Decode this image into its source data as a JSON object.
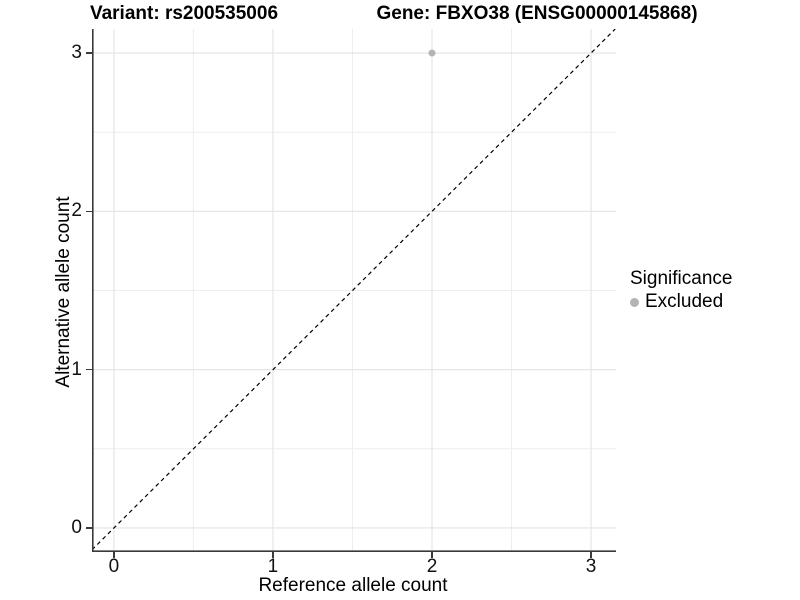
{
  "chart_data": {
    "type": "scatter",
    "title_left": "Variant: rs200535006",
    "title_right": "Gene: FBXO38 (ENSG00000145868)",
    "xlabel": "Reference allele count",
    "ylabel": "Alternative allele count",
    "xlim": [
      -0.138,
      3.157
    ],
    "ylim": [
      -0.152,
      3.152
    ],
    "x_ticks": [
      0,
      1,
      2,
      3
    ],
    "y_ticks": [
      0,
      1,
      2,
      3
    ],
    "x_minor": [
      0.5,
      1.5,
      2.5
    ],
    "y_minor": [
      0.5,
      1.5,
      2.5
    ],
    "grid": "on",
    "points": [
      {
        "x": 2,
        "y": 3,
        "significance": "Excluded"
      }
    ],
    "reference_line": {
      "kind": "identity",
      "slope": 1,
      "intercept": 0,
      "style": "dashed",
      "color": "#000000"
    },
    "legend": {
      "title": "Significance",
      "position": "right",
      "items": [
        {
          "label": "Excluded",
          "color": "#b4b4b4",
          "marker": "circle"
        }
      ]
    },
    "colors": {
      "point": "#b4b4b4",
      "grid_major": "#e3e3e3",
      "grid_minor": "#eeeeee",
      "axis_line": "#3a3a3a",
      "tick_text": "#111111",
      "background": "#ffffff"
    }
  }
}
